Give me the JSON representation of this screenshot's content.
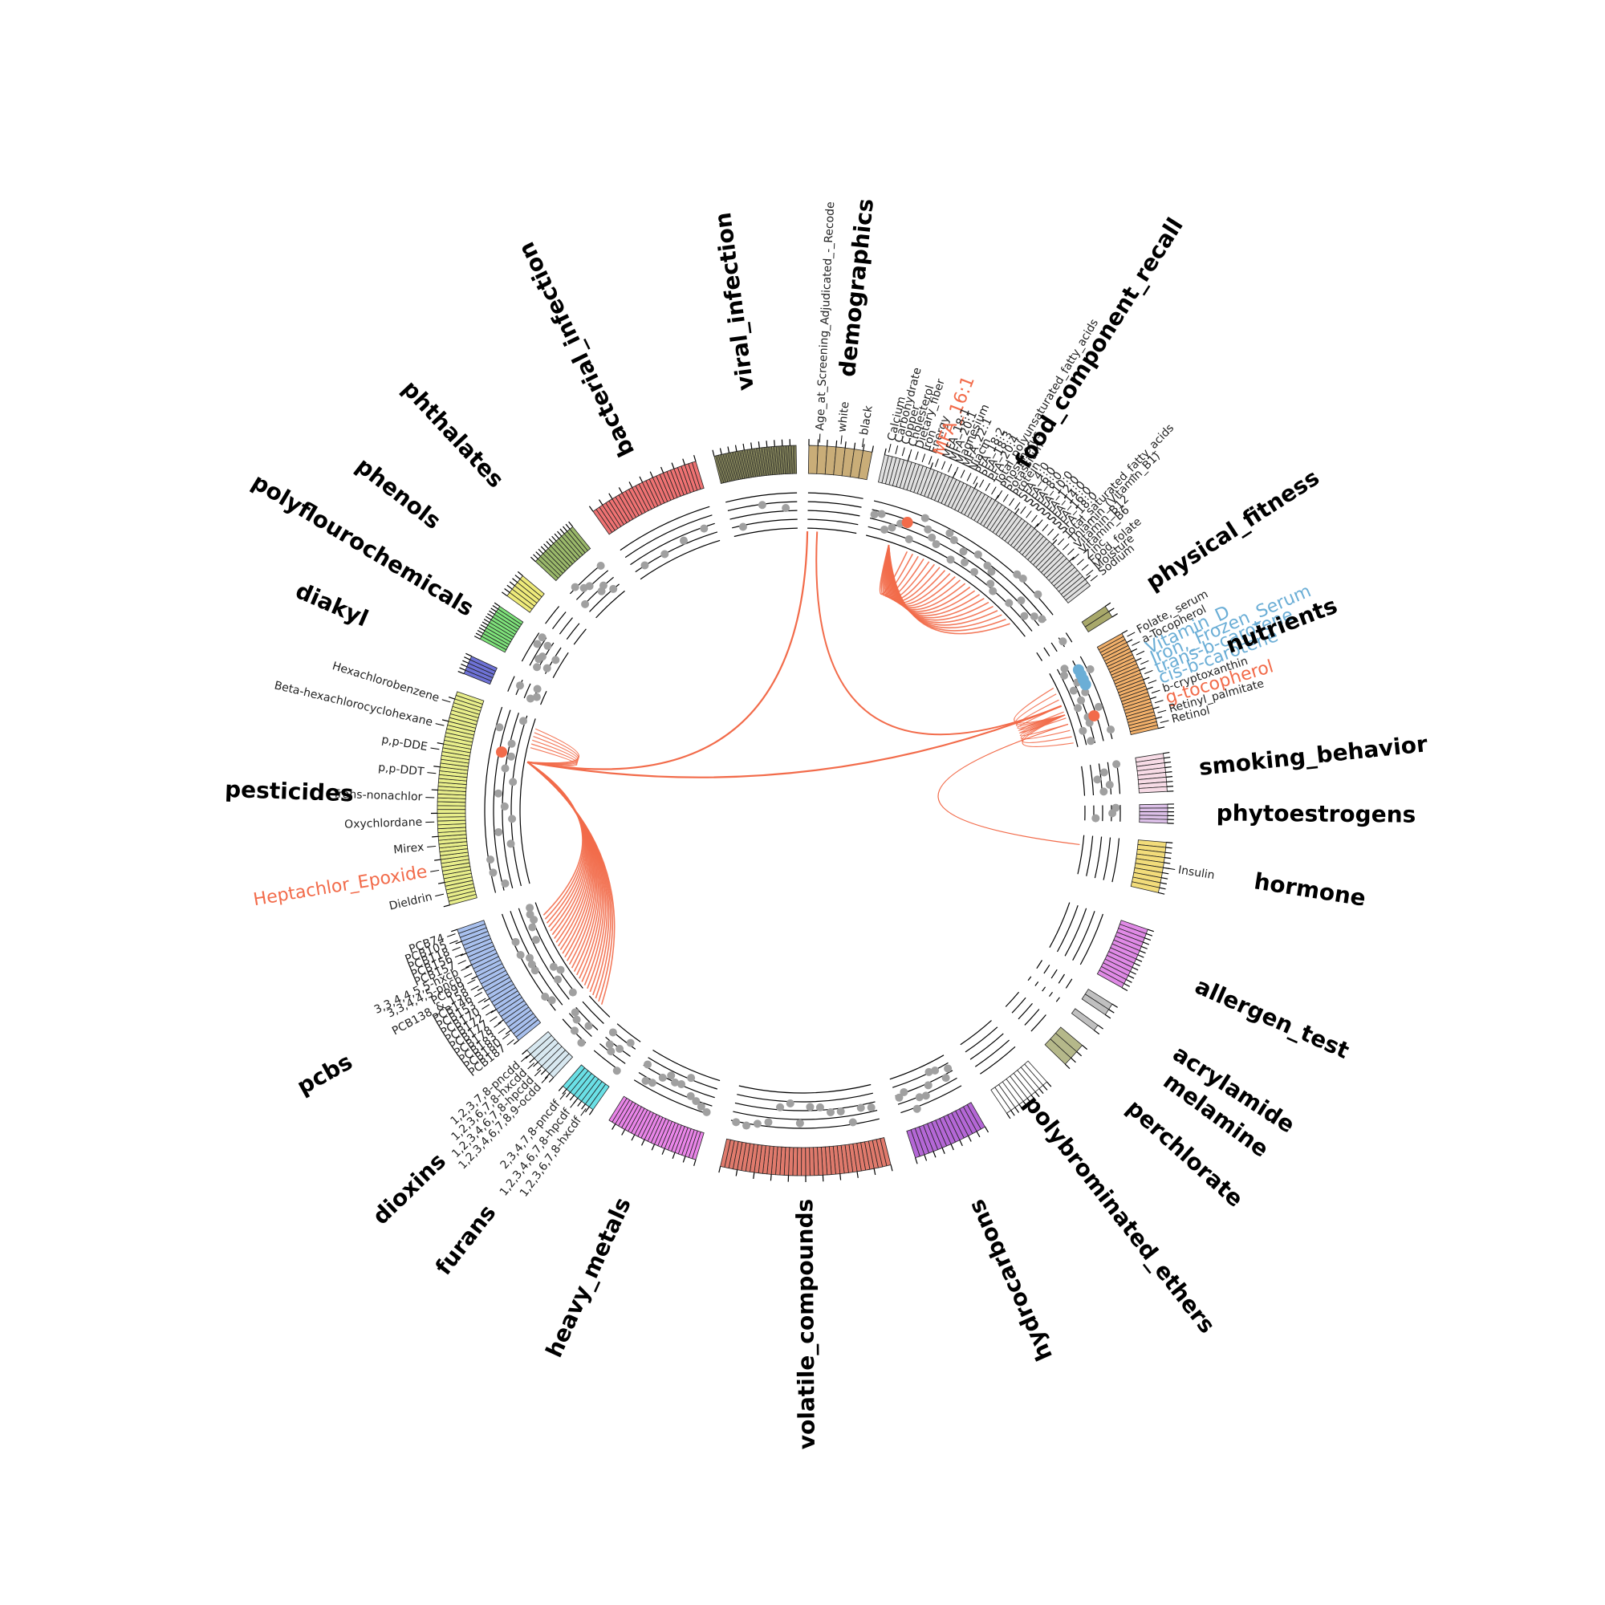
{
  "colors": {
    "link": "#f26b4a",
    "highlight_red": "#f26b4a",
    "highlight_blue": "#6baed6",
    "dot": "#a0a0a0",
    "axis": "#000000"
  },
  "categories": [
    {
      "name": "demographics",
      "color": "#c9ad78",
      "n": 7,
      "dots": 0
    },
    {
      "name": "food_component_recall",
      "color": "#e0e0e0",
      "n": 62,
      "dots": 30
    },
    {
      "name": "physical_fitness",
      "color": "#a8a86a",
      "n": 2,
      "dots": 1
    },
    {
      "name": "nutrients",
      "color": "#f2b06a",
      "n": 30,
      "dots": 14
    },
    {
      "name": "smoking_behavior",
      "color": "#f7dbe6",
      "n": 8,
      "dots": 5
    },
    {
      "name": "phytoestrogens",
      "color": "#dcc0e8",
      "n": 5,
      "dots": 3
    },
    {
      "name": "hormone",
      "color": "#f2dc7a",
      "n": 10,
      "dots": 0
    },
    {
      "name": "allergen_test",
      "color": "#e08ae6",
      "n": 14,
      "dots": 0
    },
    {
      "name": "acrylamide",
      "color": "#c0c0c0",
      "n": 2,
      "dots": 0
    },
    {
      "name": "melamine",
      "color": "#c0c0c0",
      "n": 1,
      "dots": 0
    },
    {
      "name": "perchlorate",
      "color": "#b5b88a",
      "n": 3,
      "dots": 0
    },
    {
      "name": "polybrominated_ethers",
      "color": "#ffffff",
      "n": 10,
      "dots": 0
    },
    {
      "name": "hydrocarbons",
      "color": "#b467d6",
      "n": 16,
      "dots": 10
    },
    {
      "name": "volatile_compounds",
      "color": "#e07a6c",
      "n": 40,
      "dots": 14
    },
    {
      "name": "heavy_metals",
      "color": "#e985e8",
      "n": 26,
      "dots": 12
    },
    {
      "name": "furans",
      "color": "#6ae0e6",
      "n": 8,
      "dots": 6
    },
    {
      "name": "dioxins",
      "color": "#d8e8f0",
      "n": 7,
      "dots": 5
    },
    {
      "name": "pcbs",
      "color": "#a8c0ee",
      "n": 30,
      "dots": 16
    },
    {
      "name": "pesticides",
      "color": "#e8ee8a",
      "n": 56,
      "dots": 14
    },
    {
      "name": "diakyl",
      "color": "#6e72d6",
      "n": 5,
      "dots": 4
    },
    {
      "name": "polyflourochemicals",
      "color": "#7ee27a",
      "n": 12,
      "dots": 8
    },
    {
      "name": "phenols",
      "color": "#eeea7a",
      "n": 6,
      "dots": 0
    },
    {
      "name": "phthalates",
      "color": "#9ab86a",
      "n": 14,
      "dots": 8
    },
    {
      "name": "bacterial_infection",
      "color": "#ee7272",
      "n": 30,
      "dots": 4
    },
    {
      "name": "viral_infection",
      "color": "#a8a870",
      "n": 54,
      "dots": 3
    }
  ],
  "category_labels": {
    "demographics": "demographics",
    "food_component_recall": "food_component_recall",
    "physical_fitness": "physical_fitness",
    "nutrients": "nutrients",
    "smoking_behavior": "smoking_behavior",
    "phytoestrogens": "phytoestrogens",
    "hormone": "hormone",
    "allergen_test": "allergen_test",
    "acrylamide": "acrylamide",
    "melamine": "melamine",
    "perchlorate": "perchlorate",
    "polybrominated_ethers": "polybrominated_ethers",
    "hydrocarbons": "hydrocarbons",
    "volatile_compounds": "volatile_compounds",
    "heavy_metals": "heavy_metals",
    "furans": "furans",
    "dioxins": "dioxins",
    "pcbs": "pcbs",
    "pesticides": "pesticides",
    "diakyl": "diakyl",
    "polyflourochemicals": "polyflourochemicals",
    "phenols": "phenols",
    "phthalates": "phthalates",
    "bacterial_infection": "bacterial_infection",
    "viral_infection": "viral_infection"
  },
  "variable_labels": {
    "demographics": [
      "Age_at_Screening_Adjudicated_-_Recode",
      "white",
      "black"
    ],
    "food_component_recall": [
      "Calcium",
      "Carbohydrate",
      "Copper",
      "Cholesterol",
      "Dietary_fiber",
      "Iron",
      "Energy",
      "MFA_16:1",
      "MFA_18:1",
      "MFA_20:1",
      "Magnesium",
      "MFA_22:1",
      "Niacin",
      "PFA_18:2",
      "PFA_18:3",
      "PFA_20:4",
      "Total_polyunsaturated_fatty_acids",
      "Phosphorus",
      "Potassium",
      "Protein",
      "SFA_4:0",
      "SFA_6:0",
      "SFA_8:0",
      "SFA_10:0",
      "SFA_12:0",
      "SFA_14:0",
      "SFA_16:0",
      "SFA_18:0",
      "Total_saturated_fatty_acids",
      "Thiamin_(Vitamin_B1)",
      "Vitamin_B12",
      "Vitamin_B6",
      "Zinc",
      "Food_folate",
      "Moisture",
      "Sodium"
    ],
    "nutrients": [
      "Folate,_serum",
      "a-Tocopherol",
      "Vitamin_D",
      "Iron,_Frozen_Serum",
      "trans-b-carotene",
      "cis-b-carotene",
      "b-cryptoxanthin",
      "g-tocopherol",
      "Retinyl_palmitate",
      "Retinol"
    ],
    "hormone": [
      "Insulin"
    ],
    "pesticides": [
      "Dieldrin",
      "Heptachlor_Epoxide",
      "Mirex",
      "Oxychlordane",
      "Trans-nonachlor",
      "p,p-DDT",
      "p,p-DDE",
      "Beta-hexachlorocyclohexane",
      "Hexachlorobenzene"
    ],
    "pcbs": [
      "PCB187",
      "PCB180",
      "PCB183",
      "PCB178",
      "PCB177",
      "PCB172",
      "PCB170",
      "PCB153",
      "PCB146",
      "PCB138_&_158",
      "PCB99",
      "3,3,4,4,5-pncb",
      "3,3,4,4,5,5-hxcb",
      "PCB157",
      "PCB156",
      "PCB118",
      "PCB105",
      "PCB74"
    ],
    "dioxins": [
      "1,2,3,4,6,7,8,9-ocdd",
      "1,2,3,4,6,7,8-hpcdd",
      "1,2,3,6,7,8-hxcdd",
      "1,2,3,7,8-pncdd"
    ],
    "furans": [
      "1,2,3,6,7,8-hxcdf",
      "1,2,3,4,6,7,8-hpcdf",
      "2,3,4,7,8-pncdf"
    ]
  },
  "highlights": {
    "red": [
      "MFA_16:1",
      "g-tocopherol",
      "Heptachlor_Epoxide"
    ],
    "blue": [
      "Vitamin_D",
      "Iron,_Frozen_Serum",
      "trans-b-carotene",
      "cis-b-carotene"
    ]
  }
}
